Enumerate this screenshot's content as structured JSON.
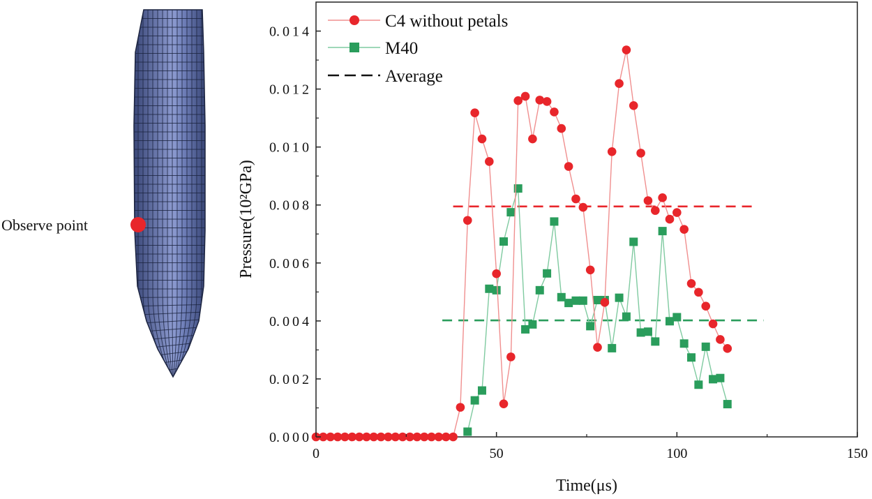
{
  "annotation": {
    "label": "Observe point",
    "marker_color": "#e8262b"
  },
  "projectile": {
    "fill": "#4a5a8c",
    "highlight": "#8d9bd0",
    "grid": "#1c2440"
  },
  "chart_data": {
    "type": "line",
    "title": "",
    "xlabel": "Time(μs)",
    "ylabel": "Pressure(10²GPa)",
    "xlim": [
      0,
      150
    ],
    "ylim": [
      0,
      0.015
    ],
    "x_ticks": [
      0,
      50,
      100,
      150
    ],
    "x_tick_labels": [
      "0",
      "50",
      "100",
      "150"
    ],
    "y_ticks": [
      0,
      0.002,
      0.004,
      0.006,
      0.008,
      0.01,
      0.012,
      0.014
    ],
    "y_tick_labels": [
      "0.000",
      "0.002",
      "0.004",
      "0.006",
      "0.008",
      "0.010",
      "0.012",
      "0.014"
    ],
    "grid": false,
    "legend_position": "top-left",
    "series": [
      {
        "name": "C4 without petals",
        "color": "#e8262b",
        "line_color": "#f08f8f",
        "marker": "circle",
        "x": [
          0,
          2,
          4,
          6,
          8,
          10,
          12,
          14,
          16,
          18,
          20,
          22,
          24,
          26,
          28,
          30,
          32,
          34,
          36,
          38,
          40,
          42,
          44,
          46,
          48,
          50,
          52,
          54,
          56,
          58,
          60,
          62,
          64,
          66,
          68,
          70,
          72,
          74,
          76,
          78,
          80,
          82,
          84,
          86,
          88,
          90,
          92,
          94,
          96,
          98,
          100,
          102,
          104,
          106,
          108,
          110,
          112,
          114
        ],
        "values": [
          0,
          0,
          0,
          0,
          0,
          0,
          0,
          0,
          0,
          0,
          0,
          0,
          0,
          0,
          0,
          0,
          0,
          0,
          0,
          0,
          0.00102,
          0.00747,
          0.01118,
          0.01028,
          0.0095,
          0.00563,
          0.00114,
          0.00276,
          0.0116,
          0.01175,
          0.01028,
          0.01162,
          0.01157,
          0.01121,
          0.01064,
          0.00933,
          0.00821,
          0.00792,
          0.00576,
          0.00309,
          0.00464,
          0.00984,
          0.01219,
          0.01335,
          0.01143,
          0.00979,
          0.00815,
          0.00781,
          0.00825,
          0.00751,
          0.00774,
          0.00716,
          0.00529,
          0.00499,
          0.00451,
          0.0039,
          0.00336,
          0.00305
        ]
      },
      {
        "name": "M40",
        "color": "#2a9d5c",
        "line_color": "#7fcaa0",
        "marker": "square",
        "x": [
          42,
          44,
          46,
          48,
          50,
          52,
          54,
          56,
          58,
          60,
          62,
          64,
          66,
          68,
          70,
          72,
          74,
          76,
          78,
          80,
          82,
          84,
          86,
          88,
          90,
          92,
          94,
          96,
          98,
          100,
          102,
          104,
          106,
          108,
          110,
          112,
          114
        ],
        "values": [
          0.00018,
          0.00126,
          0.0016,
          0.00511,
          0.00506,
          0.00674,
          0.00775,
          0.00857,
          0.00371,
          0.00388,
          0.00506,
          0.00564,
          0.00743,
          0.00482,
          0.00462,
          0.0047,
          0.0047,
          0.00382,
          0.00472,
          0.00472,
          0.00306,
          0.0048,
          0.00415,
          0.00673,
          0.0036,
          0.00363,
          0.00329,
          0.0071,
          0.00399,
          0.00413,
          0.00322,
          0.00274,
          0.0018,
          0.00311,
          0.00199,
          0.00203,
          0.00113
        ]
      },
      {
        "name": "Average",
        "color": "#111111",
        "line_style": "dashed",
        "marker": "none",
        "legend_only": true
      }
    ],
    "average_lines": [
      {
        "series": "C4 without petals",
        "value": 0.00795,
        "x_range": [
          38,
          122
        ],
        "color": "#e8262b"
      },
      {
        "series": "M40",
        "value": 0.00402,
        "x_range": [
          35,
          124
        ],
        "color": "#2a9d5c"
      }
    ]
  }
}
